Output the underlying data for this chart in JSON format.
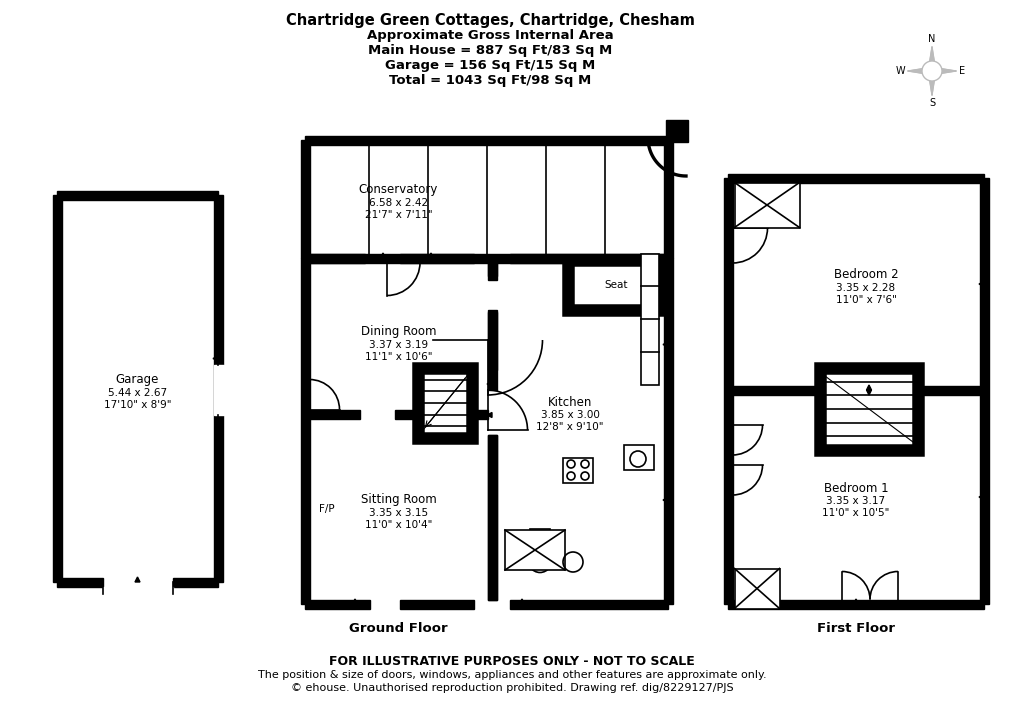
{
  "title_lines": [
    "Chartridge Green Cottages, Chartridge, Chesham",
    "Approximate Gross Internal Area",
    "Main House = 887 Sq Ft/83 Sq M",
    "Garage = 156 Sq Ft/15 Sq M",
    "Total = 1043 Sq Ft/98 Sq M"
  ],
  "footer_lines": [
    "FOR ILLUSTRATIVE PURPOSES ONLY - NOT TO SCALE",
    "The position & size of doors, windows, appliances and other features are approximate only.",
    "© ehouse. Unauthorised reproduction prohibited. Drawing ref. dig/8229127/PJS"
  ],
  "ground_floor_label": "Ground Floor",
  "first_floor_label": "First Floor",
  "bg_color": "#ffffff",
  "wall_color": "#000000",
  "rooms": {
    "conservatory": {
      "label": "Conservatory",
      "dims": "6.58 x 2.42",
      "dims2": "21'7\" x 7'11\""
    },
    "dining": {
      "label": "Dining Room",
      "dims": "3.37 x 3.19",
      "dims2": "11'1\" x 10'6\""
    },
    "kitchen": {
      "label": "Kitchen",
      "dims": "3.85 x 3.00",
      "dims2": "12'8\" x 9'10\""
    },
    "sitting": {
      "label": "Sitting Room",
      "dims": "3.35 x 3.15",
      "dims2": "11'0\" x 10'4\""
    },
    "garage": {
      "label": "Garage",
      "dims": "5.44 x 2.67",
      "dims2": "17'10\" x 8'9\""
    },
    "bedroom1": {
      "label": "Bedroom 1",
      "dims": "3.35 x 3.17",
      "dims2": "11'0\" x 10'5\""
    },
    "bedroom2": {
      "label": "Bedroom 2",
      "dims": "3.35 x 2.28",
      "dims2": "11'0\" x 7'6\""
    },
    "seat": {
      "label": "Seat"
    },
    "fp": {
      "label": "F/P"
    }
  }
}
